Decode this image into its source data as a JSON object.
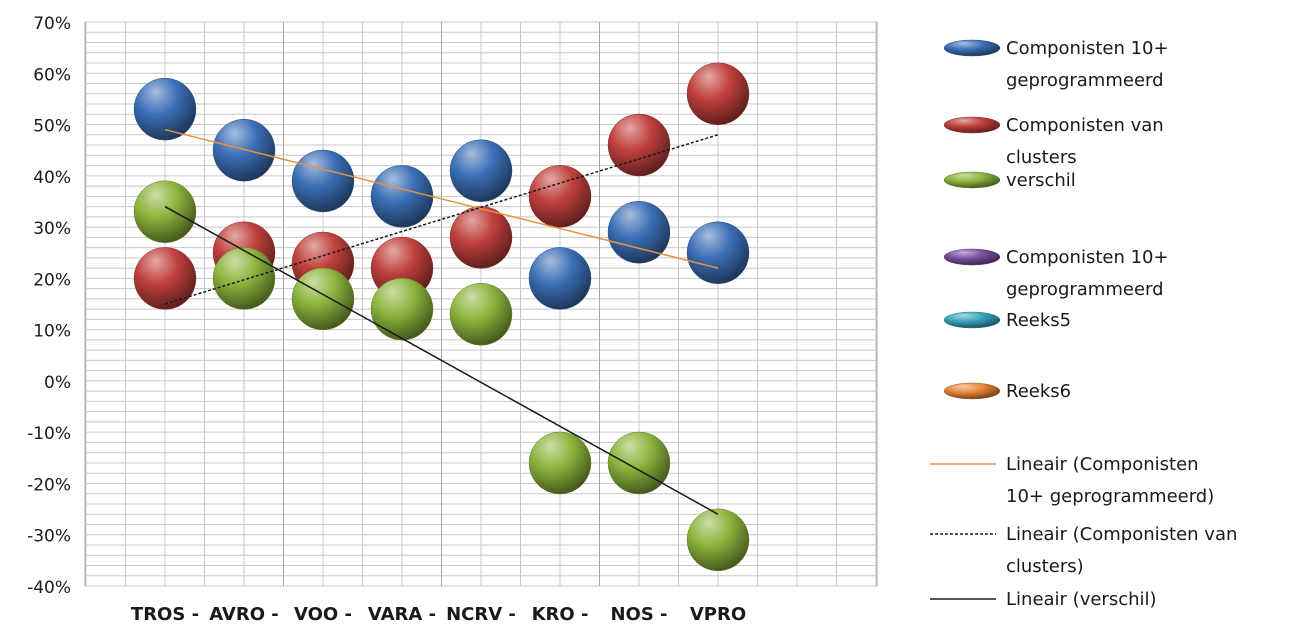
{
  "chart_data": {
    "type": "scatter",
    "subtype": "3d-bubble",
    "title": "",
    "xlabel": "",
    "ylabel": "",
    "categories": [
      "TROS -",
      "AVRO -",
      "VOO -",
      "VARA -",
      "NCRV -",
      "KRO -",
      "NOS -",
      "VPRO"
    ],
    "ylim": [
      -0.4,
      0.7
    ],
    "yticks": [
      -0.4,
      -0.3,
      -0.2,
      -0.1,
      0,
      0.1,
      0.2,
      0.3,
      0.4,
      0.5,
      0.6,
      0.7
    ],
    "ytick_labels": [
      "-40%",
      "-30%",
      "-20%",
      "-10%",
      "0%",
      "10%",
      "20%",
      "30%",
      "40%",
      "50%",
      "60%",
      "70%"
    ],
    "grid": true,
    "legend_position": "right",
    "series": [
      {
        "name": "Componisten 10+ geprogrammeerd",
        "color": "#3b6fb6",
        "values": [
          0.53,
          0.45,
          0.39,
          0.36,
          0.41,
          0.2,
          0.29,
          0.25
        ]
      },
      {
        "name": "Componisten van clusters",
        "color": "#c0403c",
        "values": [
          0.2,
          0.25,
          0.23,
          0.22,
          0.28,
          0.36,
          0.46,
          0.56
        ]
      },
      {
        "name": "verschil",
        "color": "#8db43d",
        "values": [
          0.33,
          0.2,
          0.16,
          0.14,
          0.13,
          -0.16,
          -0.16,
          -0.31
        ]
      }
    ],
    "trendlines": [
      {
        "name": "Lineair (Componisten 10+ geprogrammeerd)",
        "style": "solid",
        "color": "#e8923c",
        "start": 0.49,
        "end": 0.22
      },
      {
        "name": "Lineair (Componisten van clusters)",
        "style": "dashed",
        "color": "#1a1a1a",
        "start": 0.15,
        "end": 0.48
      },
      {
        "name": "Lineair (verschil)",
        "style": "solid",
        "color": "#1a1a1a",
        "start": 0.34,
        "end": -0.26
      }
    ],
    "legend": [
      {
        "kind": "bubble",
        "color": "#3b6fb6",
        "lines": [
          "Componisten 10+",
          "geprogrammeerd"
        ]
      },
      {
        "kind": "bubble",
        "color": "#c0403c",
        "lines": [
          "Componisten van",
          "clusters"
        ]
      },
      {
        "kind": "bubble",
        "color": "#8db43d",
        "lines": [
          "verschil"
        ]
      },
      {
        "kind": "bubble",
        "color": "#7a4fa0",
        "lines": [
          "Componisten 10+",
          "geprogrammeerd"
        ]
      },
      {
        "kind": "bubble",
        "color": "#3aa3bd",
        "lines": [
          "Reeks5"
        ]
      },
      {
        "kind": "bubble",
        "color": "#e8863a",
        "lines": [
          "Reeks6"
        ]
      },
      {
        "kind": "line",
        "style": "solid",
        "color": "#e8923c",
        "lines": [
          "Lineair (Componisten",
          "10+ geprogrammeerd)"
        ]
      },
      {
        "kind": "line",
        "style": "dashed",
        "color": "#1a1a1a",
        "lines": [
          "Lineair (Componisten van",
          "clusters)"
        ]
      },
      {
        "kind": "line",
        "style": "solid",
        "color": "#1a1a1a",
        "lines": [
          "Lineair (verschil)"
        ]
      }
    ]
  }
}
